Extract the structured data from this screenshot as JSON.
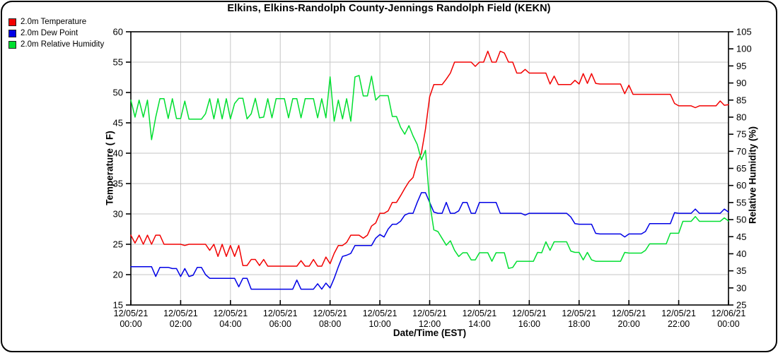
{
  "chart": {
    "title": "Elkins, Elkins-Randolph County-Jennings Randolph Field (KEKN)",
    "x_axis_label": "Date/Time (EST)",
    "y_left_label": "Temperature ( F)",
    "y_right_label": "Relative Humidity (%)",
    "grid_color": "#c6c6c6",
    "axis_color": "#000000"
  },
  "chart_data": {
    "type": "line",
    "title": "Elkins, Elkins-Randolph County-Jennings Randolph Field (KEKN)",
    "xlabel": "Date/Time (EST)",
    "x_start": "12/05/21 00:00 EST",
    "x_end": "12/06/21 00:00 EST",
    "x_interval_minutes": 10,
    "x_range_hours": [
      0,
      24
    ],
    "x_tick_labels": [
      {
        "date": "12/05/21",
        "time": "00:00"
      },
      {
        "date": "12/05/21",
        "time": "02:00"
      },
      {
        "date": "12/05/21",
        "time": "04:00"
      },
      {
        "date": "12/05/21",
        "time": "06:00"
      },
      {
        "date": "12/05/21",
        "time": "08:00"
      },
      {
        "date": "12/05/21",
        "time": "10:00"
      },
      {
        "date": "12/05/21",
        "time": "12:00"
      },
      {
        "date": "12/05/21",
        "time": "14:00"
      },
      {
        "date": "12/05/21",
        "time": "16:00"
      },
      {
        "date": "12/05/21",
        "time": "18:00"
      },
      {
        "date": "12/05/21",
        "time": "20:00"
      },
      {
        "date": "12/05/21",
        "time": "22:00"
      },
      {
        "date": "12/06/21",
        "time": "00:00"
      }
    ],
    "y_left": {
      "label": "Temperature ( F)",
      "min": 15,
      "max": 60,
      "tick_step": 5
    },
    "y_right": {
      "label": "Relative Humidity (%)",
      "min": 25,
      "max": 105,
      "tick_step": 5
    },
    "grid": true,
    "legend_position": "top-left",
    "series": [
      {
        "name": "2.0m Temperature",
        "color": "#f20000",
        "axis": "left",
        "values": [
          26.5,
          25.2,
          26.5,
          25.0,
          26.5,
          25.0,
          26.5,
          26.5,
          25.0,
          25.0,
          25.0,
          25.0,
          25.0,
          24.8,
          25.0,
          25.0,
          25.0,
          25.0,
          25.0,
          24.0,
          25.0,
          23.0,
          25.0,
          23.0,
          24.8,
          23.0,
          24.8,
          21.5,
          21.5,
          22.5,
          22.5,
          21.5,
          22.5,
          21.4,
          21.4,
          21.4,
          21.4,
          21.4,
          21.4,
          21.4,
          21.4,
          22.3,
          21.4,
          21.4,
          22.5,
          21.4,
          21.4,
          22.9,
          21.8,
          23.5,
          24.8,
          24.8,
          25.3,
          26.5,
          26.5,
          26.5,
          26.0,
          26.5,
          28.0,
          28.5,
          30.1,
          30.1,
          30.5,
          31.9,
          31.9,
          33.0,
          34.2,
          35.3,
          36.0,
          38.5,
          40.0,
          44.0,
          49.3,
          51.3,
          51.3,
          51.3,
          52.2,
          53.2,
          55.0,
          55.0,
          55.0,
          55.0,
          55.0,
          54.3,
          55.0,
          55.0,
          56.8,
          55.0,
          55.0,
          56.8,
          56.5,
          55.0,
          55.0,
          53.2,
          53.2,
          53.8,
          53.2,
          53.2,
          53.2,
          53.2,
          53.2,
          51.4,
          52.7,
          51.3,
          51.3,
          51.3,
          51.3,
          52.0,
          51.4,
          53.1,
          51.5,
          53.1,
          51.5,
          51.4,
          51.4,
          51.4,
          51.4,
          51.4,
          51.4,
          49.8,
          51.2,
          49.7,
          49.7,
          49.7,
          49.7,
          49.7,
          49.7,
          49.7,
          49.7,
          49.7,
          49.7,
          48.2,
          47.8,
          47.8,
          47.8,
          47.8,
          47.5,
          47.8,
          47.8,
          47.8,
          47.8,
          47.8,
          48.6,
          47.9,
          48.0
        ]
      },
      {
        "name": "2.0m Dew Point",
        "color": "#0000e6",
        "axis": "left",
        "values": [
          21.3,
          21.3,
          21.3,
          21.3,
          21.3,
          21.3,
          19.7,
          21.2,
          21.2,
          21.2,
          21.0,
          21.0,
          19.7,
          21.0,
          19.7,
          19.9,
          21.2,
          21.2,
          20.0,
          19.4,
          19.4,
          19.4,
          19.4,
          19.4,
          19.4,
          19.4,
          18.0,
          19.4,
          19.4,
          17.6,
          17.6,
          17.6,
          17.6,
          17.6,
          17.6,
          17.6,
          17.6,
          17.6,
          17.6,
          17.6,
          19.1,
          17.6,
          17.6,
          17.6,
          17.6,
          18.5,
          17.6,
          18.6,
          17.8,
          19.4,
          21.3,
          23.0,
          23.2,
          23.5,
          24.8,
          24.8,
          24.8,
          24.8,
          24.8,
          26.0,
          26.6,
          26.2,
          27.5,
          28.3,
          28.3,
          28.8,
          29.8,
          30.1,
          30.1,
          31.9,
          33.5,
          33.5,
          31.9,
          30.3,
          30.1,
          30.1,
          31.9,
          30.1,
          30.1,
          30.5,
          31.9,
          31.9,
          30.1,
          30.1,
          31.9,
          31.9,
          31.9,
          31.9,
          31.9,
          30.1,
          30.1,
          30.1,
          30.1,
          30.1,
          30.1,
          29.8,
          30.1,
          30.1,
          30.1,
          30.1,
          30.1,
          30.1,
          30.1,
          30.1,
          30.1,
          30.1,
          29.5,
          28.4,
          28.3,
          28.3,
          28.3,
          28.3,
          26.8,
          26.7,
          26.7,
          26.7,
          26.7,
          26.7,
          26.7,
          26.2,
          26.7,
          26.7,
          26.7,
          26.7,
          27.1,
          28.4,
          28.4,
          28.4,
          28.4,
          28.4,
          28.4,
          30.2,
          30.1,
          30.1,
          30.1,
          30.1,
          30.8,
          30.1,
          30.1,
          30.1,
          30.1,
          30.1,
          30.1,
          30.8,
          30.3
        ]
      },
      {
        "name": "2.0m Relative Humidity",
        "color": "#00df30",
        "axis": "right",
        "values": [
          85.0,
          80.0,
          85.0,
          80.0,
          85.0,
          73.4,
          80.0,
          85.4,
          85.4,
          79.6,
          85.4,
          79.6,
          79.6,
          84.7,
          79.4,
          79.4,
          79.4,
          79.4,
          81.0,
          85.4,
          79.5,
          85.4,
          79.5,
          85.4,
          79.5,
          84.0,
          85.5,
          85.5,
          79.5,
          81.0,
          85.5,
          79.8,
          80.0,
          85.4,
          79.8,
          85.4,
          85.4,
          85.4,
          79.8,
          85.4,
          85.4,
          79.8,
          85.4,
          85.4,
          85.4,
          79.8,
          85.4,
          79.8,
          91.8,
          78.8,
          85.0,
          79.5,
          85.4,
          78.8,
          91.8,
          92.2,
          86.2,
          86.2,
          92.0,
          85.0,
          86.3,
          86.3,
          86.3,
          80.2,
          80.2,
          77.0,
          75.0,
          77.5,
          74.5,
          72.0,
          67.5,
          70.3,
          55.0,
          47.0,
          46.5,
          44.5,
          42.5,
          43.8,
          41.0,
          39.2,
          40.3,
          40.3,
          38.2,
          38.2,
          40.3,
          40.3,
          40.3,
          37.8,
          40.3,
          40.3,
          40.3,
          35.7,
          36.0,
          37.8,
          37.8,
          37.8,
          37.8,
          37.8,
          40.4,
          40.3,
          43.5,
          41.0,
          43.5,
          43.5,
          43.5,
          43.5,
          40.8,
          40.4,
          40.4,
          38.2,
          40.4,
          38.2,
          37.8,
          37.8,
          37.8,
          37.8,
          37.8,
          37.8,
          37.8,
          40.4,
          40.2,
          40.2,
          40.2,
          40.2,
          41.0,
          42.9,
          42.9,
          42.9,
          42.9,
          42.9,
          46.0,
          46.0,
          46.0,
          49.5,
          49.5,
          49.5,
          50.9,
          49.5,
          49.5,
          49.5,
          49.5,
          49.5,
          49.5,
          50.5,
          49.6
        ]
      }
    ]
  }
}
